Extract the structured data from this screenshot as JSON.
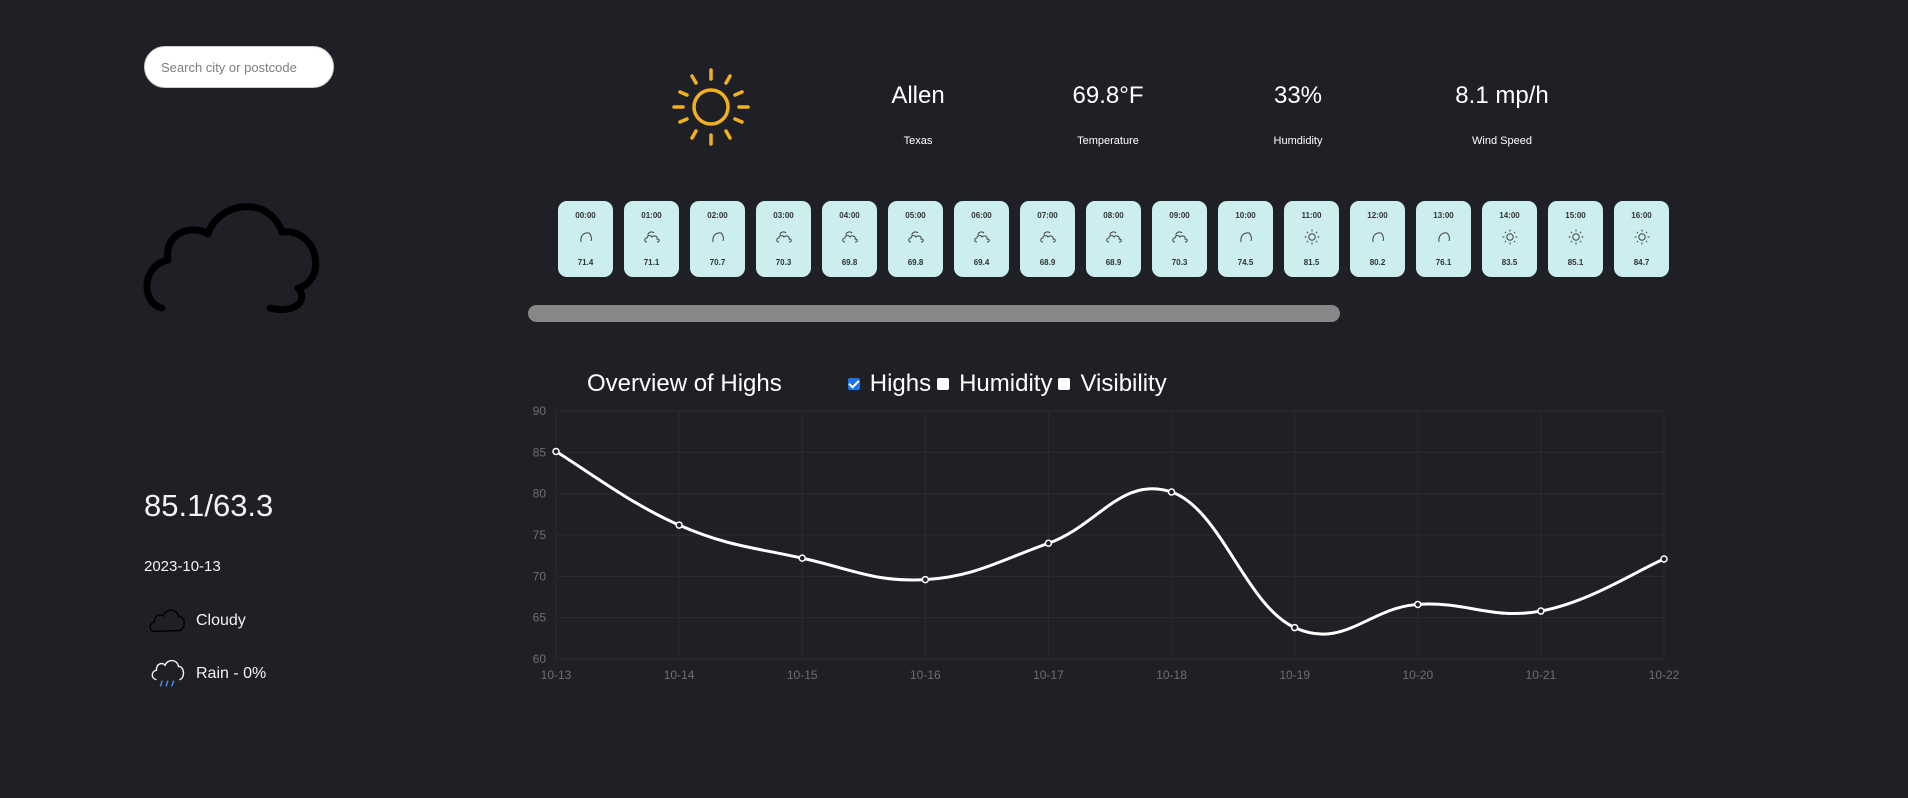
{
  "search": {
    "placeholder": "Search city or postcode"
  },
  "current": {
    "icon": "sun-icon",
    "city": "Allen",
    "region": "Texas",
    "temperature": "69.8°F",
    "temperature_label": "Temperature",
    "humidity": "33%",
    "humidity_label": "Humdidity",
    "wind": "8.1 mp/h",
    "wind_label": "Wind Speed",
    "accent_color": "#f2b01e"
  },
  "forecast_day": {
    "icon": "cloud-icon",
    "hilo": "85.1/63.3",
    "date": "2023-10-13",
    "condition": "Cloudy",
    "rain": "Rain - 0%"
  },
  "hourly": [
    {
      "time": "00:00",
      "icon": "moon-icon",
      "temp": "71.4"
    },
    {
      "time": "01:00",
      "icon": "cloudy-moon-icon",
      "temp": "71.1"
    },
    {
      "time": "02:00",
      "icon": "moon-icon",
      "temp": "70.7"
    },
    {
      "time": "03:00",
      "icon": "cloudy-moon-icon",
      "temp": "70.3"
    },
    {
      "time": "04:00",
      "icon": "cloudy-moon-icon",
      "temp": "69.8"
    },
    {
      "time": "05:00",
      "icon": "cloudy-moon-icon",
      "temp": "69.8"
    },
    {
      "time": "06:00",
      "icon": "cloudy-moon-icon",
      "temp": "69.4"
    },
    {
      "time": "07:00",
      "icon": "cloudy-moon-icon",
      "temp": "68.9"
    },
    {
      "time": "08:00",
      "icon": "cloudy-moon-icon",
      "temp": "68.9"
    },
    {
      "time": "09:00",
      "icon": "cloudy-moon-icon",
      "temp": "70.3"
    },
    {
      "time": "10:00",
      "icon": "moon-icon",
      "temp": "74.5"
    },
    {
      "time": "11:00",
      "icon": "sun-icon",
      "temp": "81.5"
    },
    {
      "time": "12:00",
      "icon": "moon-icon",
      "temp": "80.2"
    },
    {
      "time": "13:00",
      "icon": "moon-icon",
      "temp": "76.1"
    },
    {
      "time": "14:00",
      "icon": "sun-icon",
      "temp": "83.5"
    },
    {
      "time": "15:00",
      "icon": "sun-icon",
      "temp": "85.1"
    },
    {
      "time": "16:00",
      "icon": "sun-icon",
      "temp": "84.7"
    }
  ],
  "chart_header": {
    "title": "Overview of Highs",
    "options": [
      {
        "label": "Highs",
        "checked": true
      },
      {
        "label": "Humidity",
        "checked": false
      },
      {
        "label": "Visibility",
        "checked": false
      }
    ]
  },
  "chart_data": {
    "type": "line",
    "title": "",
    "categories": [
      "10-13",
      "10-14",
      "10-15",
      "10-16",
      "10-17",
      "10-18",
      "10-19",
      "10-20",
      "10-21",
      "10-22"
    ],
    "series": [
      {
        "values": [
          85.1,
          76.2,
          72.2,
          69.6,
          74.0,
          80.2,
          63.8,
          66.6,
          65.8,
          72.1
        ]
      }
    ],
    "ylim": [
      60,
      90
    ],
    "yticks": [
      60,
      65,
      70,
      75,
      80,
      85,
      90
    ],
    "grid": true,
    "line_color": "#ffffff"
  }
}
